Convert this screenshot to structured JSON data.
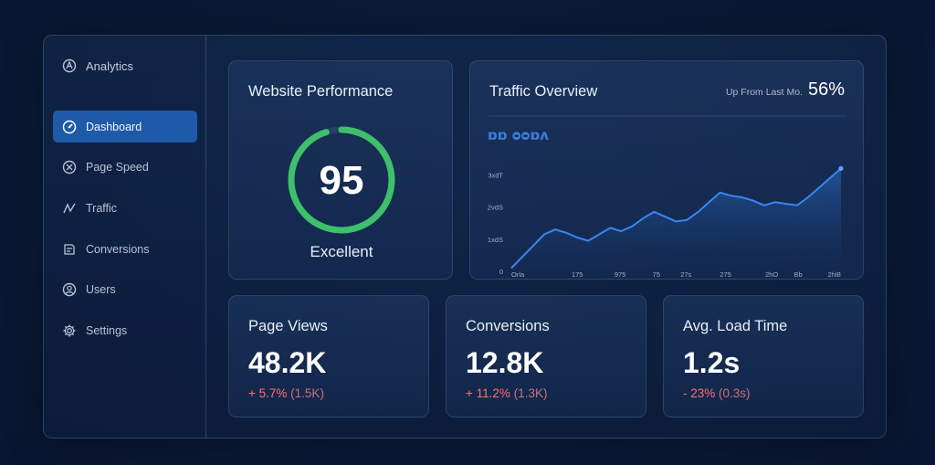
{
  "sidebar": {
    "brand": "Analytics",
    "items": [
      {
        "label": "Dashboard",
        "icon": "gauge-icon",
        "active": true
      },
      {
        "label": "Page Speed",
        "icon": "speed-icon"
      },
      {
        "label": "Traffic",
        "icon": "traffic-icon"
      },
      {
        "label": "Conversions",
        "icon": "conversions-icon"
      },
      {
        "label": "Users",
        "icon": "user-icon"
      },
      {
        "label": "Settings",
        "icon": "gear-icon"
      }
    ]
  },
  "performance": {
    "title": "Website Performance",
    "score": "95",
    "score_fraction": 0.95,
    "rating": "Excellent",
    "ring_color": "#3ec06a"
  },
  "traffic": {
    "title": "Traffic Overview",
    "up_label": "Up From Last Mo.",
    "up_value": "56%",
    "legend_glyphs": "ɒɒ  ᴑᴑɒᴧ",
    "accent": "#3a7fe0"
  },
  "chart_data": {
    "type": "area",
    "y_tick_labels": [
      "0",
      "1xdS",
      "2vdS",
      "3xdT"
    ],
    "x_tick_labels": [
      "Orla",
      "175",
      "975",
      "75",
      "27s",
      "275",
      "2hO",
      "Bb",
      "2hl8"
    ],
    "ylim": [
      0,
      3
    ],
    "x": [
      0,
      1,
      2,
      3,
      4,
      5,
      6,
      7,
      8,
      9,
      10,
      11,
      12,
      13,
      14,
      15,
      16,
      17,
      18,
      19,
      20,
      21,
      22,
      23,
      24,
      25,
      26,
      27,
      28,
      29,
      30
    ],
    "values": [
      0.1,
      0.45,
      0.8,
      1.15,
      1.3,
      1.2,
      1.05,
      0.95,
      1.15,
      1.35,
      1.25,
      1.4,
      1.65,
      1.85,
      1.7,
      1.55,
      1.6,
      1.85,
      2.15,
      2.45,
      2.35,
      2.3,
      2.2,
      2.05,
      2.15,
      2.1,
      2.05,
      2.3,
      2.6,
      2.9,
      3.2
    ],
    "grid": false
  },
  "stats": [
    {
      "title": "Page Views",
      "value": "48.2K",
      "pct": "+ 5.7%",
      "abs": "(1.5K)"
    },
    {
      "title": "Conversions",
      "value": "12.8K",
      "pct": "+ 11.2%",
      "abs": "(1.3K)"
    },
    {
      "title": "Avg. Load Time",
      "value": "1.2s",
      "pct": "- 23%",
      "abs": "(0.3s)"
    }
  ]
}
